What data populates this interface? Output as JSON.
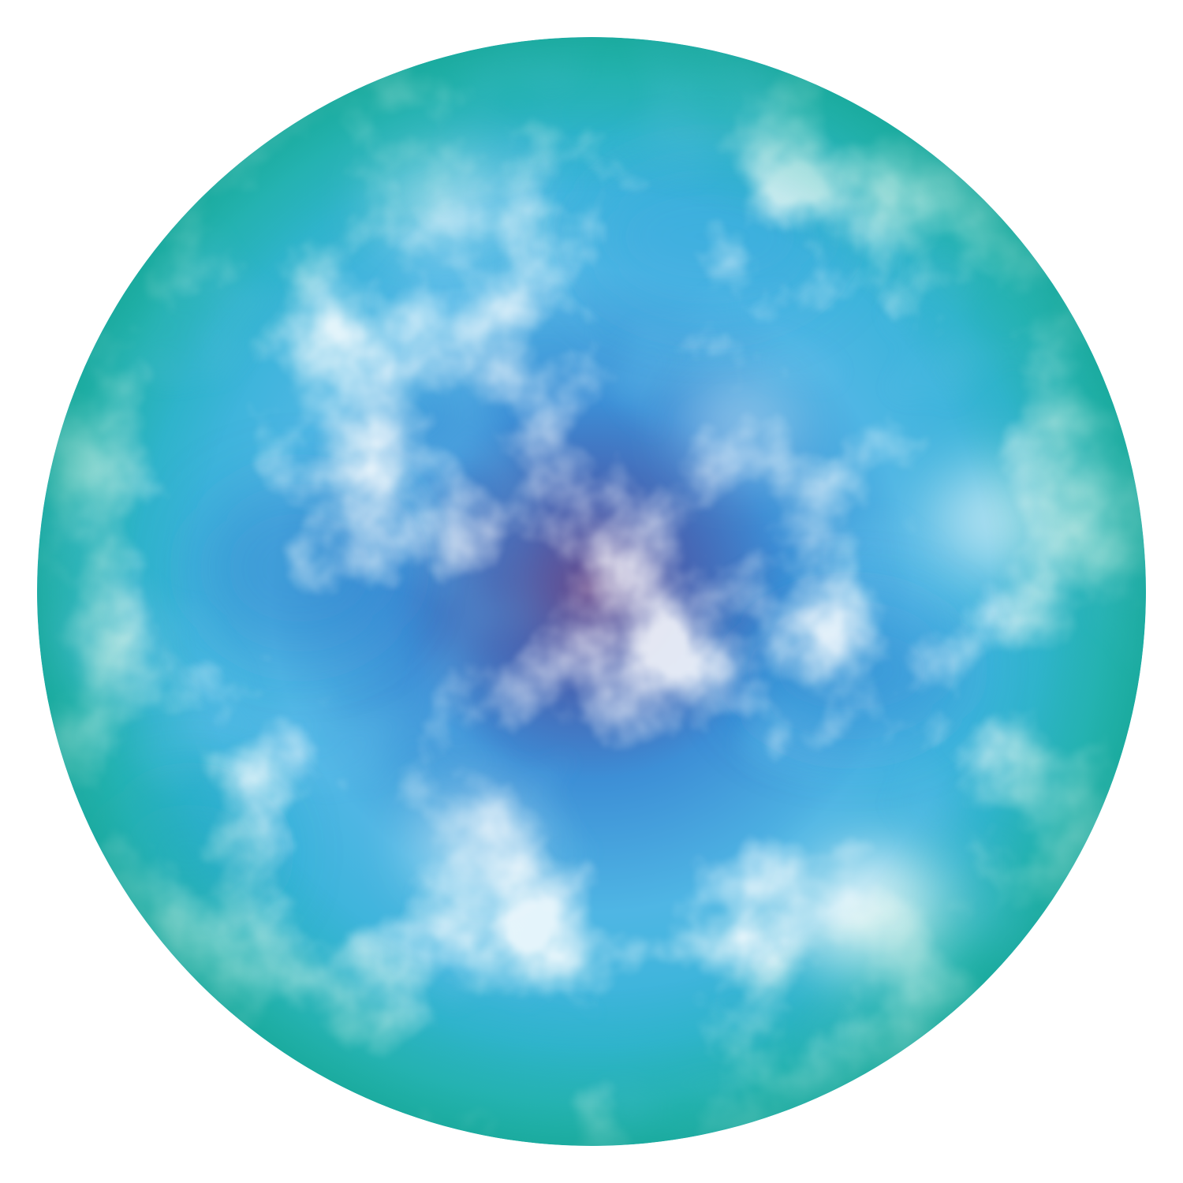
{
  "image": {
    "background_color": "#ffffff",
    "subject": "circle-with-cloudy-gradient-texture",
    "palette": {
      "center": "#5a4e9e",
      "inner": "#3a74c4",
      "mid": "#4fb3e2",
      "outer": "#24aeb6",
      "highlight": "#ffffff"
    }
  }
}
